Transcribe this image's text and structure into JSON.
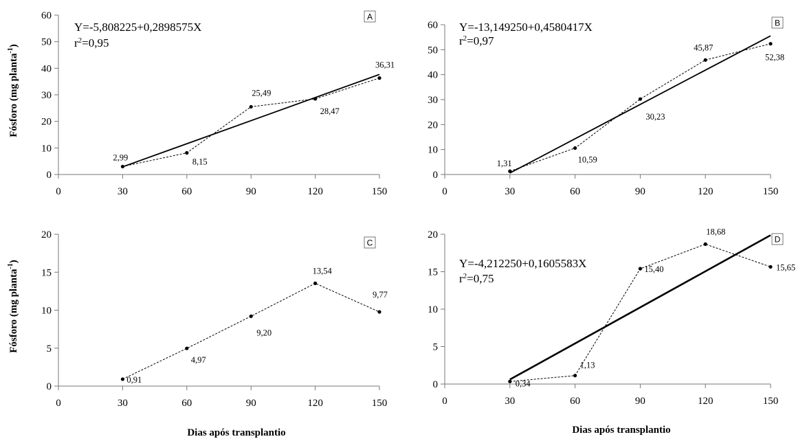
{
  "figure": {
    "ylabel_prefix": "Fósforo  (mg planta",
    "ylabel_exp": "-1",
    "ylabel_suffix": ")",
    "xlabel": "Dias após transplantio"
  },
  "chart_data": [
    {
      "type": "line",
      "panel": "A",
      "x": [
        30,
        60,
        90,
        120,
        150
      ],
      "xticks": [
        0,
        30,
        60,
        90,
        120,
        150
      ],
      "xlim": [
        0,
        150
      ],
      "ylim": [
        0,
        60
      ],
      "yticks": [
        0,
        10,
        20,
        30,
        40,
        50,
        60
      ],
      "observed": [
        2.99,
        8.15,
        25.49,
        28.47,
        36.31
      ],
      "labels": [
        "2,99",
        "8,15",
        "25,49",
        "28,47",
        "36,31"
      ],
      "equation": "Y=-5,808225+0,2898575X",
      "r2_prefix": "r",
      "r2_exp": "2",
      "r2_value": "=0,95",
      "fit": {
        "intercept": -5.808225,
        "slope": 0.2898575
      },
      "grid": false
    },
    {
      "type": "line",
      "panel": "B",
      "x": [
        30,
        60,
        90,
        120,
        150
      ],
      "xticks": [
        0,
        30,
        60,
        90,
        120,
        150
      ],
      "xlim": [
        0,
        150
      ],
      "ylim": [
        0,
        60
      ],
      "yticks": [
        0,
        10,
        20,
        30,
        40,
        50,
        60
      ],
      "observed": [
        1.31,
        10.59,
        30.23,
        45.87,
        52.38
      ],
      "labels": [
        "1,31",
        "10,59",
        "30,23",
        "45,87",
        "52,38"
      ],
      "equation": "Y=-13,149250+0,4580417X",
      "r2_prefix": "r",
      "r2_exp": "2",
      "r2_value": "=0,97",
      "fit": {
        "intercept": -13.14925,
        "slope": 0.4580417
      },
      "grid": false
    },
    {
      "type": "line",
      "panel": "C",
      "x": [
        30,
        60,
        90,
        120,
        150
      ],
      "xticks": [
        0,
        30,
        60,
        90,
        120,
        150
      ],
      "xlim": [
        0,
        150
      ],
      "ylim": [
        0,
        20
      ],
      "yticks": [
        0,
        5,
        10,
        15,
        20
      ],
      "observed": [
        0.91,
        4.97,
        9.2,
        13.54,
        9.77
      ],
      "labels": [
        "0,91",
        "4,97",
        "9,20",
        "13,54",
        "9,77"
      ],
      "grid": false
    },
    {
      "type": "line",
      "panel": "D",
      "x": [
        30,
        60,
        90,
        120,
        150
      ],
      "xticks": [
        0,
        30,
        60,
        90,
        120,
        150
      ],
      "xlim": [
        0,
        150
      ],
      "ylim": [
        0,
        20
      ],
      "yticks": [
        0,
        5,
        10,
        15,
        20
      ],
      "observed": [
        0.34,
        1.13,
        15.4,
        18.68,
        15.65
      ],
      "labels": [
        "0,34",
        "1,13",
        "15,40",
        "18,68",
        "15,65"
      ],
      "equation": "Y=-4,212250+0,1605583X",
      "r2_prefix": "r",
      "r2_exp": "2",
      "r2_value": "=0,75",
      "fit": {
        "intercept": -4.21225,
        "slope": 0.1605583
      },
      "grid": false
    }
  ]
}
